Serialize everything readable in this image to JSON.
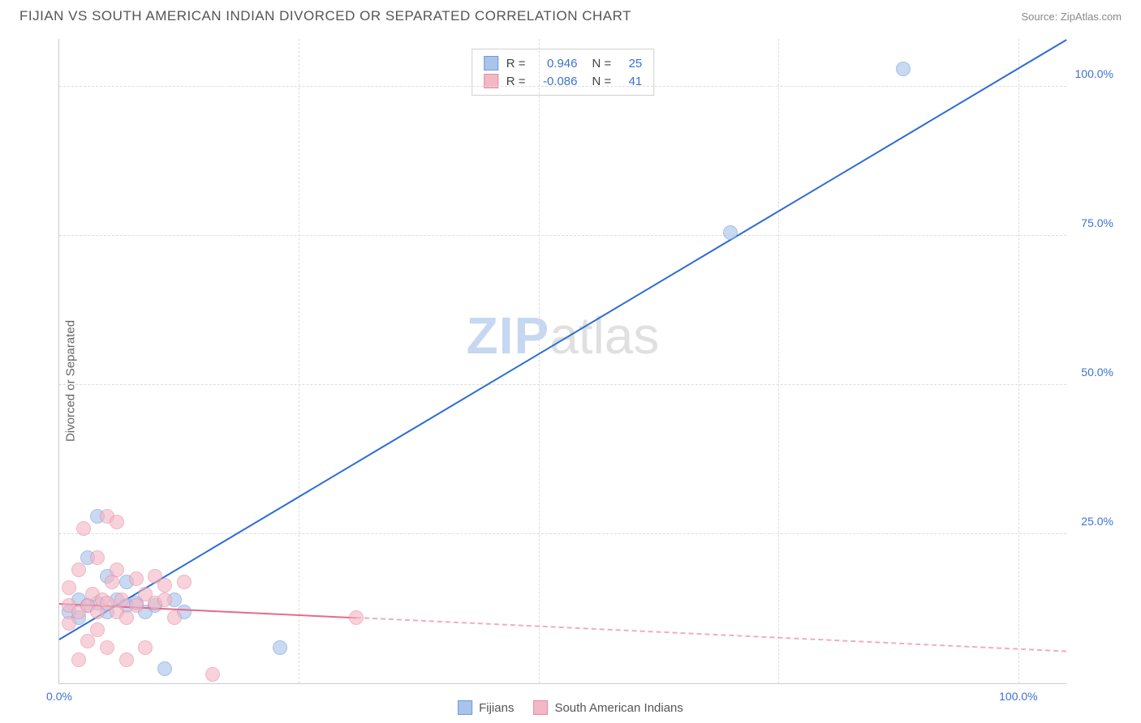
{
  "header": {
    "title": "FIJIAN VS SOUTH AMERICAN INDIAN DIVORCED OR SEPARATED CORRELATION CHART",
    "source": "Source: ZipAtlas.com"
  },
  "ylabel": "Divorced or Separated",
  "watermark": {
    "part1": "ZIP",
    "part2": "atlas"
  },
  "chart": {
    "type": "scatter-with-regression",
    "xlim": [
      0,
      105
    ],
    "ylim": [
      0,
      108
    ],
    "xticks": [
      {
        "pos": 0,
        "label": "0.0%"
      },
      {
        "pos": 100,
        "label": "100.0%"
      }
    ],
    "yticks": [
      {
        "pos": 25,
        "label": "25.0%"
      },
      {
        "pos": 50,
        "label": "50.0%"
      },
      {
        "pos": 75,
        "label": "75.0%"
      },
      {
        "pos": 100,
        "label": "100.0%"
      }
    ],
    "grid_x_positions": [
      25,
      50,
      75,
      100
    ],
    "grid_y_positions": [
      25,
      50,
      75,
      100
    ],
    "grid_color": "#dddddd",
    "background_color": "#ffffff",
    "axis_color": "#cccccc",
    "tick_fontsize": 14,
    "tick_color": "#3b72d1",
    "label_fontsize": 15,
    "series": [
      {
        "name": "Fijians",
        "fill": "#a9c3eb",
        "stroke": "#6f9bdc",
        "line_color": "#2d6cd6",
        "r_value": "0.946",
        "n_value": "25",
        "regression": {
          "x1": 0,
          "y1": 7.5,
          "x2": 105,
          "y2": 108,
          "dashed_from_x": null
        },
        "points": [
          {
            "x": 1,
            "y": 12
          },
          {
            "x": 2,
            "y": 14
          },
          {
            "x": 2,
            "y": 11
          },
          {
            "x": 3,
            "y": 13
          },
          {
            "x": 3,
            "y": 21
          },
          {
            "x": 4,
            "y": 13.5
          },
          {
            "x": 4,
            "y": 28
          },
          {
            "x": 5,
            "y": 18
          },
          {
            "x": 5,
            "y": 12
          },
          {
            "x": 6,
            "y": 14
          },
          {
            "x": 7,
            "y": 13
          },
          {
            "x": 7,
            "y": 17
          },
          {
            "x": 8,
            "y": 13.5
          },
          {
            "x": 9,
            "y": 12
          },
          {
            "x": 10,
            "y": 13
          },
          {
            "x": 11,
            "y": 2.5
          },
          {
            "x": 12,
            "y": 14
          },
          {
            "x": 13,
            "y": 12
          },
          {
            "x": 23,
            "y": 6
          },
          {
            "x": 70,
            "y": 75.5
          },
          {
            "x": 88,
            "y": 103
          }
        ]
      },
      {
        "name": "South American Indians",
        "fill": "#f3b7c5",
        "stroke": "#e88aa2",
        "line_color": "#e56b8c",
        "r_value": "-0.086",
        "n_value": "41",
        "regression": {
          "x1": 0,
          "y1": 13.5,
          "x2": 105,
          "y2": 5.5,
          "dashed_from_x": 31
        },
        "points": [
          {
            "x": 1,
            "y": 13
          },
          {
            "x": 1,
            "y": 10
          },
          {
            "x": 1,
            "y": 16
          },
          {
            "x": 2,
            "y": 12
          },
          {
            "x": 2,
            "y": 4
          },
          {
            "x": 2,
            "y": 19
          },
          {
            "x": 2.5,
            "y": 26
          },
          {
            "x": 3,
            "y": 13
          },
          {
            "x": 3,
            "y": 7
          },
          {
            "x": 3.5,
            "y": 15
          },
          {
            "x": 4,
            "y": 21
          },
          {
            "x": 4,
            "y": 12
          },
          {
            "x": 4,
            "y": 9
          },
          {
            "x": 4.5,
            "y": 14
          },
          {
            "x": 5,
            "y": 28
          },
          {
            "x": 5,
            "y": 13.5
          },
          {
            "x": 5,
            "y": 6
          },
          {
            "x": 5.5,
            "y": 17
          },
          {
            "x": 6,
            "y": 27
          },
          {
            "x": 6,
            "y": 12
          },
          {
            "x": 6,
            "y": 19
          },
          {
            "x": 6.5,
            "y": 14
          },
          {
            "x": 7,
            "y": 11
          },
          {
            "x": 7,
            "y": 4
          },
          {
            "x": 8,
            "y": 17.5
          },
          {
            "x": 8,
            "y": 13
          },
          {
            "x": 9,
            "y": 15
          },
          {
            "x": 9,
            "y": 6
          },
          {
            "x": 10,
            "y": 13.5
          },
          {
            "x": 10,
            "y": 18
          },
          {
            "x": 11,
            "y": 14
          },
          {
            "x": 11,
            "y": 16.5
          },
          {
            "x": 12,
            "y": 11
          },
          {
            "x": 13,
            "y": 17
          },
          {
            "x": 16,
            "y": 1.5
          },
          {
            "x": 31,
            "y": 11
          }
        ]
      }
    ],
    "info_box": {
      "r_label": "R =",
      "n_label": "N ="
    },
    "legend_items": [
      {
        "label": "Fijians",
        "fill": "#a9c3eb",
        "stroke": "#6f9bdc"
      },
      {
        "label": "South American Indians",
        "fill": "#f3b7c5",
        "stroke": "#e88aa2"
      }
    ]
  }
}
